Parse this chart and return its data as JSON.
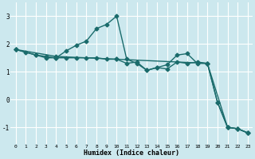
{
  "xlabel": "Humidex (Indice chaleur)",
  "bg_color": "#cce8ee",
  "grid_color": "#ffffff",
  "line_color": "#1a6b6b",
  "xlim": [
    -0.5,
    23.5
  ],
  "ylim": [
    -1.6,
    3.5
  ],
  "yticks": [
    -1,
    0,
    1,
    2,
    3
  ],
  "xticks": [
    0,
    1,
    2,
    3,
    4,
    5,
    6,
    7,
    8,
    9,
    10,
    11,
    12,
    13,
    14,
    15,
    16,
    17,
    18,
    19,
    20,
    21,
    22,
    23
  ],
  "series": [
    {
      "x": [
        0,
        1,
        2,
        3,
        4,
        5,
        6,
        7,
        8,
        9,
        10,
        11,
        12,
        13,
        14,
        15,
        16,
        17,
        18,
        19,
        20,
        21,
        22,
        23
      ],
      "y": [
        1.8,
        1.7,
        1.6,
        1.55,
        1.5,
        1.5,
        1.5,
        1.5,
        1.5,
        1.45,
        1.45,
        1.3,
        1.35,
        1.05,
        1.15,
        1.1,
        1.35,
        1.3,
        1.35,
        1.3,
        -0.1,
        -1.0,
        -1.05,
        -1.2
      ],
      "marker": "D",
      "markersize": 2.5,
      "linewidth": 1.0
    },
    {
      "x": [
        0,
        2,
        3,
        4,
        5,
        6,
        7,
        8,
        9,
        10,
        11,
        12,
        13,
        14,
        15,
        16,
        17,
        18,
        19,
        21,
        22,
        23
      ],
      "y": [
        1.8,
        1.6,
        1.5,
        1.5,
        1.75,
        1.95,
        2.1,
        2.55,
        2.7,
        3.0,
        1.45,
        1.3,
        1.05,
        1.15,
        1.25,
        1.6,
        1.65,
        1.3,
        1.3,
        -1.0,
        -1.05,
        -1.2
      ],
      "marker": "D",
      "markersize": 2.5,
      "linewidth": 1.0
    },
    {
      "x": [
        0,
        4,
        10,
        19,
        20,
        21,
        22,
        23
      ],
      "y": [
        1.8,
        1.55,
        1.45,
        1.3,
        -0.1,
        -1.0,
        -1.05,
        -1.2
      ],
      "marker": "D",
      "markersize": 2.5,
      "linewidth": 1.0
    }
  ]
}
